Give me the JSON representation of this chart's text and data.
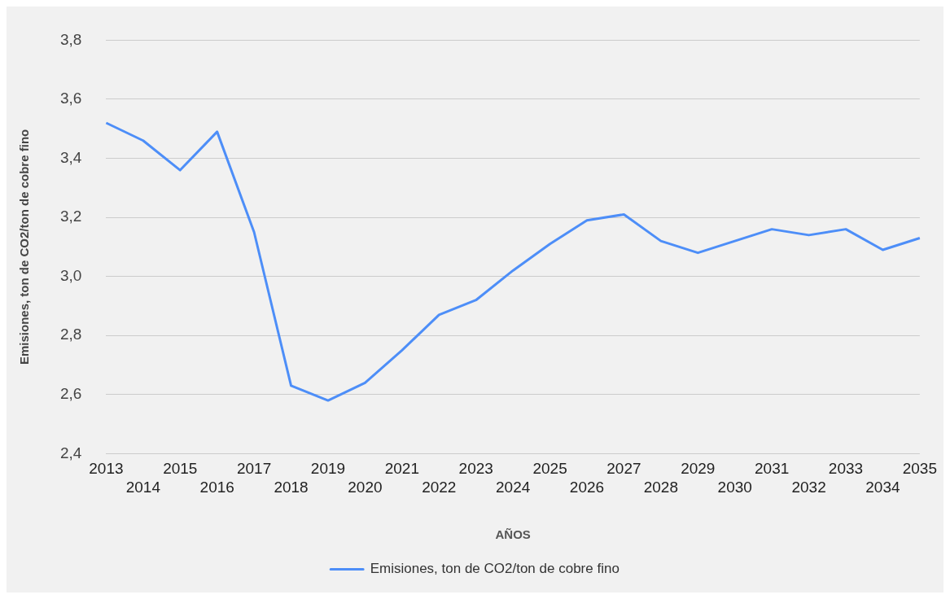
{
  "chart_data": {
    "type": "line",
    "xlabel": "AÑOS",
    "ylabel": "Emisiones, ton de CO2/ton de cobre fino",
    "categories": [
      "2013",
      "2014",
      "2015",
      "2016",
      "2017",
      "2018",
      "2019",
      "2020",
      "2021",
      "2022",
      "2023",
      "2024",
      "2025",
      "2026",
      "2027",
      "2028",
      "2029",
      "2030",
      "2031",
      "2032",
      "2033",
      "2034",
      "2035"
    ],
    "series": [
      {
        "name": "Emisiones, ton de CO2/ton de cobre fino",
        "color": "#4d8ef8",
        "values": [
          3.52,
          3.46,
          3.36,
          3.49,
          3.15,
          2.63,
          2.58,
          2.64,
          2.75,
          2.87,
          2.92,
          3.02,
          3.11,
          3.19,
          3.21,
          3.12,
          3.08,
          3.12,
          3.16,
          3.14,
          3.16,
          3.09,
          3.13
        ]
      }
    ],
    "ylim": [
      2.4,
      3.8
    ],
    "yticks": [
      {
        "value": 2.4,
        "label": "2,4"
      },
      {
        "value": 2.6,
        "label": "2,6"
      },
      {
        "value": 2.8,
        "label": "2,8"
      },
      {
        "value": 3.0,
        "label": "3,0"
      },
      {
        "value": 3.2,
        "label": "3,2"
      },
      {
        "value": 3.4,
        "label": "3,4"
      },
      {
        "value": 3.6,
        "label": "3,6"
      },
      {
        "value": 3.8,
        "label": "3,8"
      }
    ],
    "grid": "y",
    "legend": "bottom",
    "marker": "none",
    "line_style": "solid"
  }
}
